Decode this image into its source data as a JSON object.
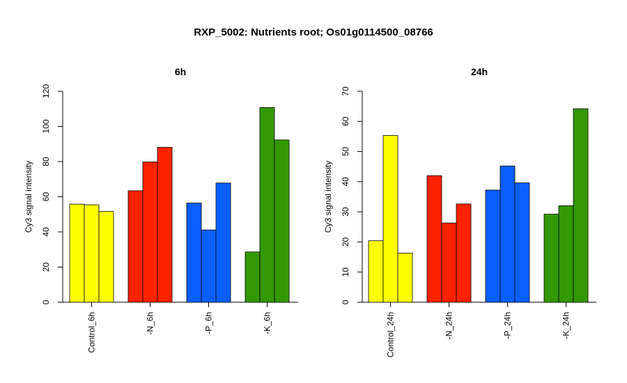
{
  "figure": {
    "title": "RXP_5002: Nutrients root; Os01g0114500_08766"
  },
  "chart_data": [
    {
      "type": "bar",
      "title": "6h",
      "ylabel": "Cy3 signal intensity",
      "xlabel": "",
      "ylim": [
        0,
        120
      ],
      "yticks": [
        0,
        20,
        40,
        60,
        80,
        100,
        120
      ],
      "grid": false,
      "groups": [
        {
          "label": "Control_6h",
          "color": "#FFFF00",
          "values": [
            55.8,
            55.4,
            51.6
          ]
        },
        {
          "label": "-N_6h",
          "color": "#FF2200",
          "values": [
            63.4,
            79.8,
            88.1
          ]
        },
        {
          "label": "-P_6h",
          "color": "#0A5FFF",
          "values": [
            56.4,
            41.1,
            67.8
          ]
        },
        {
          "label": "-K_6h",
          "color": "#339900",
          "values": [
            28.6,
            110.7,
            92.3
          ]
        }
      ]
    },
    {
      "type": "bar",
      "title": "24h",
      "ylabel": "Cy3 signal intensity",
      "xlabel": "",
      "ylim": [
        0,
        70
      ],
      "yticks": [
        0,
        10,
        20,
        30,
        40,
        50,
        60,
        70
      ],
      "grid": false,
      "groups": [
        {
          "label": "Control_24h",
          "color": "#FFFF00",
          "values": [
            20.4,
            55.3,
            16.3
          ]
        },
        {
          "label": "-N_24h",
          "color": "#FF2200",
          "values": [
            42.0,
            26.3,
            32.6
          ]
        },
        {
          "label": "-P_24h",
          "color": "#0A5FFF",
          "values": [
            37.2,
            45.2,
            39.6
          ]
        },
        {
          "label": "-K_24h",
          "color": "#339900",
          "values": [
            29.2,
            32.0,
            64.2
          ]
        }
      ]
    }
  ]
}
